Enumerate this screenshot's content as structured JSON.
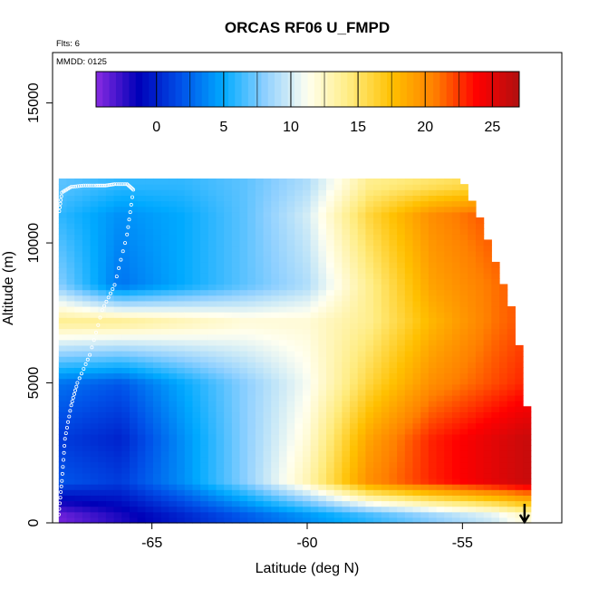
{
  "chart_data": {
    "type": "heatmap",
    "title": "ORCAS RF06 U_FMPD",
    "xlabel": "Latitude (deg N)",
    "ylabel": "Altitude (m)",
    "notes": [
      "Flts: 6",
      "MMDD: 0125"
    ],
    "xlim": [
      -68.2,
      -51.8
    ],
    "ylim": [
      0,
      16800
    ],
    "x_ticks": [
      -65,
      -60,
      -55
    ],
    "x_tick_labels": [
      "-65",
      "-60",
      "-55"
    ],
    "y_ticks": [
      0,
      5000,
      10000,
      15000
    ],
    "y_tick_labels": [
      "0",
      "5000",
      "10000",
      "15000"
    ],
    "colorbar": {
      "min": -4.5,
      "max": 27,
      "ticks": [
        0,
        5,
        10,
        15,
        20,
        25
      ],
      "tick_labels": [
        "0",
        "5",
        "10",
        "15",
        "20",
        "25"
      ],
      "colors": [
        "#8a2be2",
        "#0000b8",
        "#0050e8",
        "#00aaff",
        "#8fd0ff",
        "#fffff0",
        "#ffec80",
        "#ffc000",
        "#ff8000",
        "#ff0000",
        "#b01010"
      ]
    },
    "grid": {
      "x_edges": [
        -68.0,
        -52.8
      ],
      "top_altitude_profile": {
        "lat": [
          -68.0,
          -55.0,
          -54.5,
          -54.0,
          -53.5,
          -53.0,
          -52.8
        ],
        "alt": [
          12300,
          12300,
          11000,
          9500,
          8000,
          5500,
          2000
        ]
      },
      "value_anchors": {
        "lat": [
          -68,
          -66,
          -64,
          -62,
          -60,
          -58,
          -56,
          -54,
          -53
        ],
        "columns_by_altitude_m": {
          "250": [
            -4,
            -2,
            0,
            2,
            4,
            6,
            8,
            10,
            12
          ],
          "1500": [
            2,
            1,
            4,
            8,
            13,
            20,
            23,
            25,
            26
          ],
          "3000": [
            1,
            0,
            4,
            8,
            12,
            19,
            23,
            25,
            26
          ],
          "5000": [
            3,
            2,
            5,
            8,
            11,
            16,
            20,
            22,
            23
          ],
          "7200": [
            14,
            14,
            13,
            12,
            12,
            14,
            18,
            21,
            22
          ],
          "8500": [
            8,
            3,
            5,
            7,
            9,
            14,
            19,
            21,
            22
          ],
          "11000": [
            6,
            4,
            5,
            7,
            10,
            16,
            20,
            22,
            22
          ],
          "12100": [
            7,
            6,
            6,
            7,
            9,
            14,
            15,
            16,
            16
          ]
        }
      }
    },
    "flight_track_lat": [
      -68.0,
      -67.9,
      -67.8,
      -67.6,
      -67.4,
      -67.0,
      -66.6,
      -66.2,
      -65.8,
      -65.6,
      -65.8,
      -66.2,
      -66.5,
      -66.8,
      -67.2,
      -67.6,
      -67.9,
      -68.0
    ],
    "flight_track_alt": [
      300,
      1500,
      3000,
      4200,
      5000,
      6000,
      7600,
      8500,
      10300,
      11900,
      12100,
      12100,
      12050,
      12050,
      12050,
      12000,
      11800,
      11000
    ],
    "arrow_marker_lat": -53.0
  }
}
